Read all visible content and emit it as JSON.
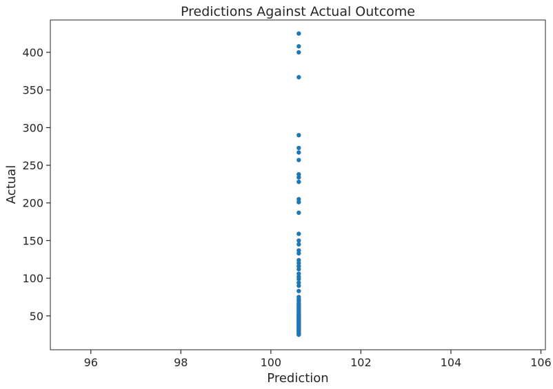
{
  "chart_data": {
    "type": "scatter",
    "title": "Predictions Against Actual Outcome",
    "xlabel": "Prediction",
    "ylabel": "Actual",
    "xlim": [
      95.1,
      106.1
    ],
    "ylim": [
      5,
      443
    ],
    "xticks": [
      96,
      98,
      100,
      102,
      104,
      106
    ],
    "yticks": [
      50,
      100,
      150,
      200,
      250,
      300,
      350,
      400
    ],
    "grid": false,
    "marker_color": "#1f77b4",
    "series": [
      {
        "x": [
          100.62,
          100.62,
          100.62,
          100.62,
          100.62,
          100.62,
          100.62,
          100.62,
          100.62,
          100.62,
          100.62,
          100.62,
          100.62,
          100.62,
          100.62,
          100.62,
          100.62,
          100.62,
          100.62,
          100.62,
          100.62,
          100.62,
          100.62,
          100.62,
          100.62,
          100.62,
          100.62,
          100.62,
          100.62,
          100.62,
          100.62,
          100.62,
          100.62,
          100.62,
          100.62,
          100.62,
          100.62,
          100.62,
          100.62,
          100.62,
          100.62,
          100.62,
          100.62,
          100.62,
          100.62,
          100.62,
          100.62,
          100.62,
          100.62,
          100.62,
          100.62,
          100.62,
          100.62,
          100.62,
          100.62,
          100.62,
          100.62,
          100.62,
          100.62,
          100.62,
          100.62,
          100.62,
          100.62,
          100.62,
          100.62,
          100.62,
          100.62,
          100.62,
          100.62
        ],
        "y": [
          425,
          408,
          400,
          367,
          290,
          273,
          267,
          257,
          238,
          234,
          228,
          205,
          201,
          187,
          159,
          150,
          145,
          137,
          133,
          124,
          120,
          116,
          112,
          106,
          102,
          99,
          94,
          90,
          83,
          75,
          72,
          70,
          67,
          64,
          62,
          60,
          58,
          55,
          53,
          51,
          49,
          47,
          45,
          43,
          41,
          39,
          37,
          35,
          33,
          31,
          29,
          27,
          26,
          25,
          28,
          30,
          32,
          34,
          36,
          38,
          40,
          42,
          44,
          46,
          48,
          50,
          52,
          56,
          66
        ]
      }
    ]
  }
}
